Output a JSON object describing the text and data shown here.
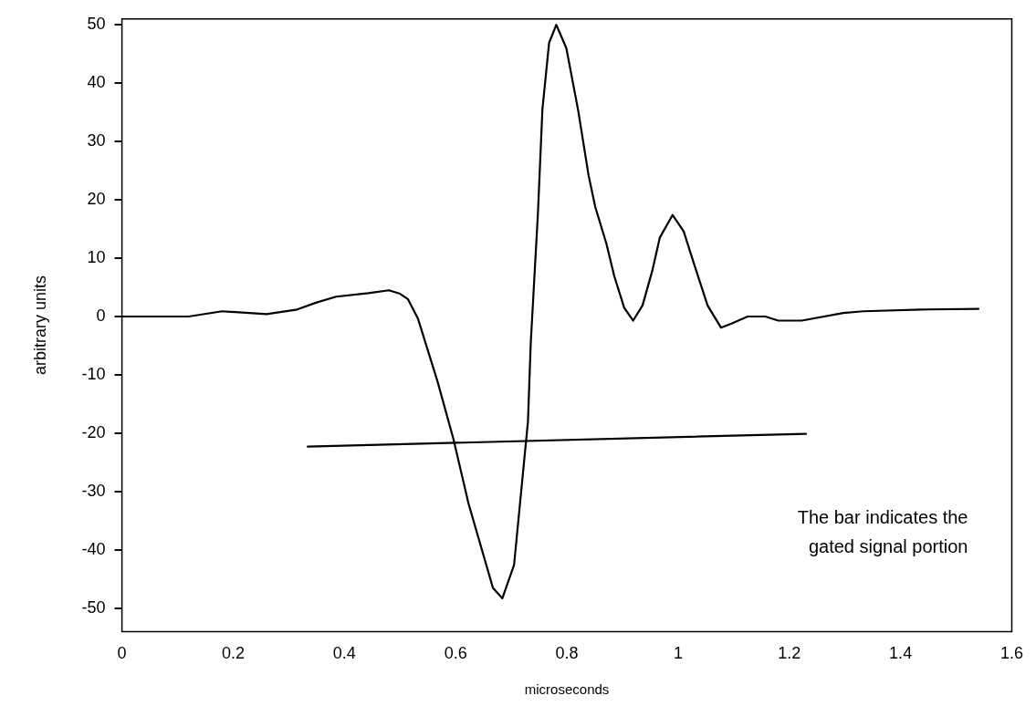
{
  "chart_data": {
    "type": "line",
    "xlabel": "microseconds",
    "ylabel": "arbitrary units",
    "xlim": [
      0,
      1.6
    ],
    "xticks": [
      0,
      0.2,
      0.4,
      0.6,
      0.8,
      1,
      1.2,
      1.4,
      1.6
    ],
    "ylim": [
      -54,
      51
    ],
    "yticks": [
      -50,
      -40,
      -30,
      -20,
      -10,
      0,
      10,
      20,
      30,
      40,
      50
    ],
    "grid": false,
    "legend": false,
    "marker": "none",
    "line_style": "solid",
    "series": [
      {
        "color": "#000000",
        "x": [
          0,
          0.12,
          0.18,
          0.26,
          0.315,
          0.35,
          0.385,
          0.443,
          0.48,
          0.5,
          0.514,
          0.532,
          0.567,
          0.596,
          0.623,
          0.667,
          0.684,
          0.705,
          0.73,
          0.735,
          0.748,
          0.756,
          0.768,
          0.781,
          0.799,
          0.82,
          0.839,
          0.851,
          0.871,
          0.885,
          0.903,
          0.919,
          0.936,
          0.954,
          0.967,
          0.99,
          1.01,
          1.028,
          1.053,
          1.077,
          1.096,
          1.125,
          1.157,
          1.18,
          1.222,
          1.297,
          1.333,
          1.437,
          1.54
        ],
        "values": [
          0,
          0,
          0.9,
          0.4,
          1.2,
          2.4,
          3.4,
          4,
          4.5,
          3.9,
          3,
          -0.3,
          -11,
          -21,
          -32,
          -46.5,
          -48.3,
          -42.6,
          -18,
          -4.6,
          17.8,
          35.5,
          46.9,
          50,
          46,
          35.5,
          24.2,
          18.8,
          12.5,
          7,
          1.5,
          -0.7,
          1.9,
          8,
          13.5,
          17.4,
          14.6,
          9.2,
          1.9,
          -1.9,
          -1.2,
          0,
          0,
          -0.7,
          -0.7,
          0.6,
          0.9,
          1.2,
          1.3
        ]
      },
      {
        "type": "line",
        "color": "#000000",
        "x": [
          0.334,
          1.23
        ],
        "values": [
          -22.3,
          -20.1
        ]
      }
    ],
    "annotations": [
      "The bar indicates the gated signal portion"
    ]
  }
}
